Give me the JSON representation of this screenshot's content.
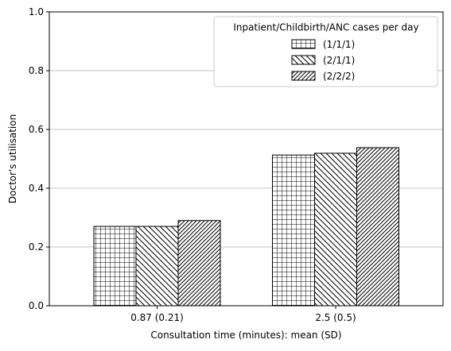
{
  "chart_data": {
    "type": "bar",
    "categories": [
      "0.87 (0.21)",
      "2.5 (0.5)"
    ],
    "series": [
      {
        "name": "(1/1/1)",
        "values": [
          0.27,
          0.513
        ],
        "pattern": "grid"
      },
      {
        "name": "(2/1/1)",
        "values": [
          0.27,
          0.519
        ],
        "pattern": "backslash"
      },
      {
        "name": "(2/2/2)",
        "values": [
          0.29,
          0.538
        ],
        "pattern": "slash"
      }
    ],
    "legend_title": "Inpatient/Childbirth/ANC cases per day",
    "legend_position": "top-right",
    "title": "",
    "xlabel": "Consultation time (minutes): mean (SD)",
    "ylabel": "Doctor's utilisation",
    "ylim": [
      0,
      1.0
    ],
    "yticks": [
      "0.0",
      "0.2",
      "0.4",
      "0.6",
      "0.8",
      "1.0"
    ],
    "grid": "horizontal",
    "colors": {
      "bar_fill": "#ffffff",
      "bar_edge": "#000000",
      "grid": "#b0b0b0"
    }
  }
}
